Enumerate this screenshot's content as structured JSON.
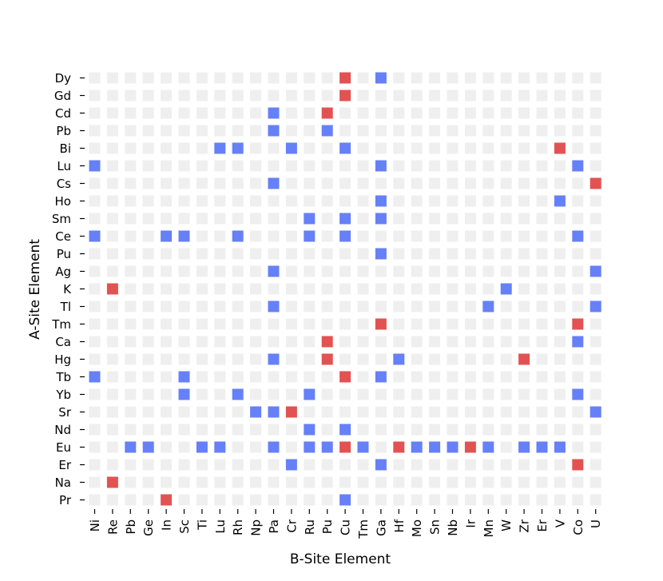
{
  "chart_data": {
    "type": "heatmap",
    "xlabel": "B-Site Element",
    "ylabel": "A-Site Element",
    "x_categories": [
      "Ni",
      "Re",
      "Pb",
      "Ge",
      "In",
      "Sc",
      "Ti",
      "Lu",
      "Rh",
      "Np",
      "Pa",
      "Cr",
      "Ru",
      "Pu",
      "Cu",
      "Tm",
      "Ga",
      "Hf",
      "Mo",
      "Sn",
      "Nb",
      "Ir",
      "Mn",
      "W",
      "Zr",
      "Er",
      "V",
      "Co",
      "U"
    ],
    "y_categories": [
      "Dy",
      "Gd",
      "Cd",
      "Pb",
      "Bi",
      "Lu",
      "Cs",
      "Ho",
      "Sm",
      "Ce",
      "Pu",
      "Ag",
      "K",
      "Tl",
      "Tm",
      "Ca",
      "Hg",
      "Tb",
      "Yb",
      "Sr",
      "Nd",
      "Eu",
      "Er",
      "Na",
      "Pr"
    ],
    "cell_states": [
      "empty",
      "blue",
      "red"
    ],
    "colors": {
      "empty": "#efefef",
      "blue": "#6680f7",
      "red": "#e35252"
    },
    "grid": false,
    "legend": "none",
    "cells": [
      {
        "y": "Dy",
        "x": "Cu",
        "state": "red"
      },
      {
        "y": "Dy",
        "x": "Ga",
        "state": "blue"
      },
      {
        "y": "Gd",
        "x": "Cu",
        "state": "red"
      },
      {
        "y": "Cd",
        "x": "Pa",
        "state": "blue"
      },
      {
        "y": "Cd",
        "x": "Pu",
        "state": "red"
      },
      {
        "y": "Pb",
        "x": "Pa",
        "state": "blue"
      },
      {
        "y": "Pb",
        "x": "Pu",
        "state": "blue"
      },
      {
        "y": "Bi",
        "x": "Lu",
        "state": "blue"
      },
      {
        "y": "Bi",
        "x": "Rh",
        "state": "blue"
      },
      {
        "y": "Bi",
        "x": "Cr",
        "state": "blue"
      },
      {
        "y": "Bi",
        "x": "Cu",
        "state": "blue"
      },
      {
        "y": "Bi",
        "x": "V",
        "state": "red"
      },
      {
        "y": "Lu",
        "x": "Ni",
        "state": "blue"
      },
      {
        "y": "Lu",
        "x": "Ga",
        "state": "blue"
      },
      {
        "y": "Lu",
        "x": "Co",
        "state": "blue"
      },
      {
        "y": "Cs",
        "x": "Pa",
        "state": "blue"
      },
      {
        "y": "Cs",
        "x": "U",
        "state": "red"
      },
      {
        "y": "Ho",
        "x": "Ga",
        "state": "blue"
      },
      {
        "y": "Ho",
        "x": "V",
        "state": "blue"
      },
      {
        "y": "Sm",
        "x": "Ru",
        "state": "blue"
      },
      {
        "y": "Sm",
        "x": "Cu",
        "state": "blue"
      },
      {
        "y": "Sm",
        "x": "Ga",
        "state": "blue"
      },
      {
        "y": "Ce",
        "x": "Ni",
        "state": "blue"
      },
      {
        "y": "Ce",
        "x": "In",
        "state": "blue"
      },
      {
        "y": "Ce",
        "x": "Sc",
        "state": "blue"
      },
      {
        "y": "Ce",
        "x": "Rh",
        "state": "blue"
      },
      {
        "y": "Ce",
        "x": "Ru",
        "state": "blue"
      },
      {
        "y": "Ce",
        "x": "Cu",
        "state": "blue"
      },
      {
        "y": "Ce",
        "x": "Co",
        "state": "blue"
      },
      {
        "y": "Pu",
        "x": "Ga",
        "state": "blue"
      },
      {
        "y": "Ag",
        "x": "Pa",
        "state": "blue"
      },
      {
        "y": "Ag",
        "x": "U",
        "state": "blue"
      },
      {
        "y": "K",
        "x": "Re",
        "state": "red"
      },
      {
        "y": "K",
        "x": "W",
        "state": "blue"
      },
      {
        "y": "Tl",
        "x": "Pa",
        "state": "blue"
      },
      {
        "y": "Tl",
        "x": "Mn",
        "state": "blue"
      },
      {
        "y": "Tl",
        "x": "U",
        "state": "blue"
      },
      {
        "y": "Tm",
        "x": "Ga",
        "state": "red"
      },
      {
        "y": "Tm",
        "x": "Co",
        "state": "red"
      },
      {
        "y": "Ca",
        "x": "Pu",
        "state": "red"
      },
      {
        "y": "Ca",
        "x": "Co",
        "state": "blue"
      },
      {
        "y": "Hg",
        "x": "Pa",
        "state": "blue"
      },
      {
        "y": "Hg",
        "x": "Pu",
        "state": "red"
      },
      {
        "y": "Hg",
        "x": "Hf",
        "state": "blue"
      },
      {
        "y": "Hg",
        "x": "Zr",
        "state": "red"
      },
      {
        "y": "Tb",
        "x": "Ni",
        "state": "blue"
      },
      {
        "y": "Tb",
        "x": "Sc",
        "state": "blue"
      },
      {
        "y": "Tb",
        "x": "Cu",
        "state": "red"
      },
      {
        "y": "Tb",
        "x": "Ga",
        "state": "blue"
      },
      {
        "y": "Yb",
        "x": "Sc",
        "state": "blue"
      },
      {
        "y": "Yb",
        "x": "Rh",
        "state": "blue"
      },
      {
        "y": "Yb",
        "x": "Ru",
        "state": "blue"
      },
      {
        "y": "Yb",
        "x": "Co",
        "state": "blue"
      },
      {
        "y": "Sr",
        "x": "Np",
        "state": "blue"
      },
      {
        "y": "Sr",
        "x": "Pa",
        "state": "blue"
      },
      {
        "y": "Sr",
        "x": "Cr",
        "state": "red"
      },
      {
        "y": "Sr",
        "x": "U",
        "state": "blue"
      },
      {
        "y": "Nd",
        "x": "Ru",
        "state": "blue"
      },
      {
        "y": "Nd",
        "x": "Cu",
        "state": "blue"
      },
      {
        "y": "Eu",
        "x": "Pb",
        "state": "blue"
      },
      {
        "y": "Eu",
        "x": "Ge",
        "state": "blue"
      },
      {
        "y": "Eu",
        "x": "Ti",
        "state": "blue"
      },
      {
        "y": "Eu",
        "x": "Lu",
        "state": "blue"
      },
      {
        "y": "Eu",
        "x": "Pa",
        "state": "blue"
      },
      {
        "y": "Eu",
        "x": "Ru",
        "state": "blue"
      },
      {
        "y": "Eu",
        "x": "Pu",
        "state": "blue"
      },
      {
        "y": "Eu",
        "x": "Cu",
        "state": "red"
      },
      {
        "y": "Eu",
        "x": "Tm",
        "state": "blue"
      },
      {
        "y": "Eu",
        "x": "Hf",
        "state": "red"
      },
      {
        "y": "Eu",
        "x": "Mo",
        "state": "blue"
      },
      {
        "y": "Eu",
        "x": "Sn",
        "state": "blue"
      },
      {
        "y": "Eu",
        "x": "Nb",
        "state": "blue"
      },
      {
        "y": "Eu",
        "x": "Ir",
        "state": "red"
      },
      {
        "y": "Eu",
        "x": "Mn",
        "state": "blue"
      },
      {
        "y": "Eu",
        "x": "Zr",
        "state": "blue"
      },
      {
        "y": "Eu",
        "x": "Er",
        "state": "blue"
      },
      {
        "y": "Eu",
        "x": "V",
        "state": "blue"
      },
      {
        "y": "Er",
        "x": "Cr",
        "state": "blue"
      },
      {
        "y": "Er",
        "x": "Ga",
        "state": "blue"
      },
      {
        "y": "Er",
        "x": "Co",
        "state": "red"
      },
      {
        "y": "Na",
        "x": "Re",
        "state": "red"
      },
      {
        "y": "Pr",
        "x": "In",
        "state": "red"
      },
      {
        "y": "Pr",
        "x": "Cu",
        "state": "blue"
      }
    ]
  }
}
